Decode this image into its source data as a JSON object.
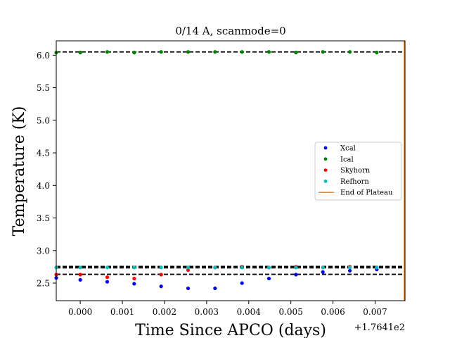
{
  "chart_data": {
    "type": "scatter",
    "title": "0/14 A, scanmode=0",
    "xlabel": "Time Since APCO (days)",
    "ylabel": "Temperature (K)",
    "offset_label": "+1.7641e2",
    "xlim": [
      -0.00057,
      0.00771
    ],
    "ylim": [
      2.23,
      6.22
    ],
    "x_tick_values": [
      0.0,
      0.001,
      0.002,
      0.003,
      0.004,
      0.005,
      0.006,
      0.007
    ],
    "x_tick_labels": [
      "0.000",
      "0.001",
      "0.002",
      "0.003",
      "0.004",
      "0.005",
      "0.006",
      "0.007"
    ],
    "y_tick_values": [
      2.5,
      3.0,
      3.5,
      4.0,
      4.5,
      5.0,
      5.5,
      6.0
    ],
    "y_tick_labels": [
      "2.5",
      "3.0",
      "3.5",
      "4.0",
      "4.5",
      "5.0",
      "5.5",
      "6.0"
    ],
    "x": [
      -0.00057,
      0.0,
      0.00064,
      0.00128,
      0.00192,
      0.00256,
      0.0032,
      0.00384,
      0.00448,
      0.00512,
      0.00576,
      0.0064,
      0.00704
    ],
    "series": [
      {
        "name": "Xcal",
        "color": "#0000ff",
        "values": [
          2.58,
          2.55,
          2.52,
          2.49,
          2.45,
          2.42,
          2.42,
          2.5,
          2.57,
          2.63,
          2.67,
          2.69,
          2.71
        ]
      },
      {
        "name": "Ical",
        "color": "#008000",
        "values": [
          6.04,
          6.04,
          6.05,
          6.04,
          6.05,
          6.05,
          6.05,
          6.05,
          6.05,
          6.04,
          6.05,
          6.05,
          6.04
        ]
      },
      {
        "name": "Skyhorn",
        "color": "#ff0000",
        "values": [
          2.63,
          2.63,
          2.59,
          2.57,
          2.63,
          2.7,
          2.74,
          2.75,
          2.74,
          2.75,
          2.74,
          2.75,
          2.74
        ]
      },
      {
        "name": "Refhorn",
        "color": "#00bfbf",
        "values": [
          2.74,
          2.74,
          2.74,
          2.74,
          2.74,
          2.74,
          2.74,
          2.74,
          2.74,
          2.74,
          2.74,
          2.74,
          2.74
        ]
      }
    ],
    "hlines": [
      6.05,
      2.755,
      2.735,
      2.635
    ],
    "end_of_plateau": {
      "name": "End of Plateau",
      "color": "#ff7f0e",
      "x": 0.00771
    },
    "legend_position": "center-right",
    "grid": false
  }
}
